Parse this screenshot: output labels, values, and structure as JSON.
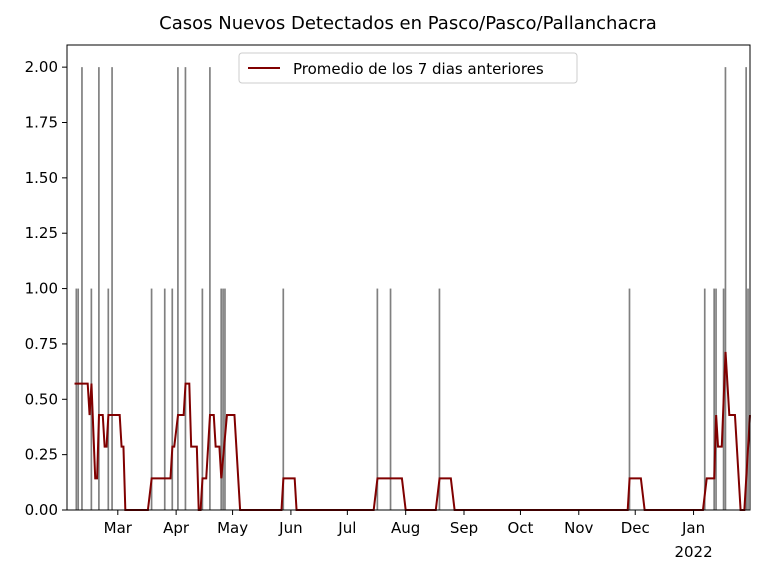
{
  "chart_data": {
    "type": "bar+line",
    "title": "Casos Nuevos Detectados en Pasco/Pasco/Pallanchacra",
    "xlim": [
      0,
      363
    ],
    "xticks": [
      {
        "value": 27,
        "label": "Mar"
      },
      {
        "value": 58,
        "label": "Apr"
      },
      {
        "value": 88,
        "label": "May"
      },
      {
        "value": 119,
        "label": "Jun"
      },
      {
        "value": 149,
        "label": "Jul"
      },
      {
        "value": 180,
        "label": "Aug"
      },
      {
        "value": 211,
        "label": "Sep"
      },
      {
        "value": 241,
        "label": "Oct"
      },
      {
        "value": 272,
        "label": "Nov"
      },
      {
        "value": 302,
        "label": "Dec"
      },
      {
        "value": 333,
        "label": "Jan"
      }
    ],
    "x_year_label": "2022",
    "ylim": [
      0,
      2.1
    ],
    "yticks": [
      {
        "value": 0,
        "label": "0.00"
      },
      {
        "value": 0.25,
        "label": "0.25"
      },
      {
        "value": 0.5,
        "label": "0.50"
      },
      {
        "value": 0.75,
        "label": "0.75"
      },
      {
        "value": 1,
        "label": "1.00"
      },
      {
        "value": 1.25,
        "label": "1.25"
      },
      {
        "value": 1.5,
        "label": "1.50"
      },
      {
        "value": 1.75,
        "label": "1.75"
      },
      {
        "value": 2,
        "label": "2.00"
      }
    ],
    "bars": {
      "color": "#808080",
      "x": [
        5,
        6,
        8,
        13,
        17,
        22,
        24,
        45,
        52,
        56,
        59,
        63,
        72,
        76,
        82,
        83,
        84,
        115,
        165,
        172,
        198,
        299,
        339,
        344,
        345,
        349,
        350,
        361,
        362
      ],
      "values": [
        1,
        1,
        2,
        1,
        2,
        1,
        2,
        1,
        1,
        1,
        2,
        2,
        1,
        2,
        1,
        1,
        1,
        1,
        1,
        1,
        1,
        1,
        1,
        1,
        1,
        1,
        2,
        2,
        1
      ]
    },
    "series": [
      {
        "name": "Promedio de los 7 dias anteriores",
        "color": "#800000",
        "x": [
          4,
          11,
          12,
          13,
          15,
          16,
          17,
          19,
          20,
          21,
          22,
          28,
          29,
          30,
          31,
          43,
          45,
          55,
          56,
          57,
          59,
          62,
          63,
          65,
          66,
          69,
          70,
          71,
          72,
          74,
          76,
          78,
          79,
          81,
          82,
          85,
          89,
          92,
          114,
          115,
          121,
          122,
          163,
          165,
          178,
          180,
          196,
          198,
          204,
          206,
          298,
          299,
          305,
          307,
          338,
          340,
          344,
          345,
          346,
          348,
          350,
          352,
          355,
          356,
          358,
          360,
          362,
          363
        ],
        "values": [
          0.571,
          0.571,
          0.429,
          0.571,
          0.143,
          0.143,
          0.429,
          0.429,
          0.286,
          0.286,
          0.429,
          0.429,
          0.286,
          0.286,
          0,
          0,
          0.143,
          0.143,
          0.286,
          0.286,
          0.429,
          0.429,
          0.571,
          0.571,
          0.286,
          0.286,
          0,
          0,
          0.143,
          0.143,
          0.429,
          0.429,
          0.286,
          0.286,
          0.143,
          0.429,
          0.429,
          0,
          0,
          0.143,
          0.143,
          0,
          0,
          0.143,
          0.143,
          0,
          0,
          0.143,
          0.143,
          0,
          0,
          0.143,
          0.143,
          0,
          0,
          0.143,
          0.143,
          0.429,
          0.286,
          0.286,
          0.714,
          0.429,
          0.429,
          0.286,
          0,
          0,
          0.286,
          0.429
        ]
      }
    ],
    "legend": "upper center"
  }
}
